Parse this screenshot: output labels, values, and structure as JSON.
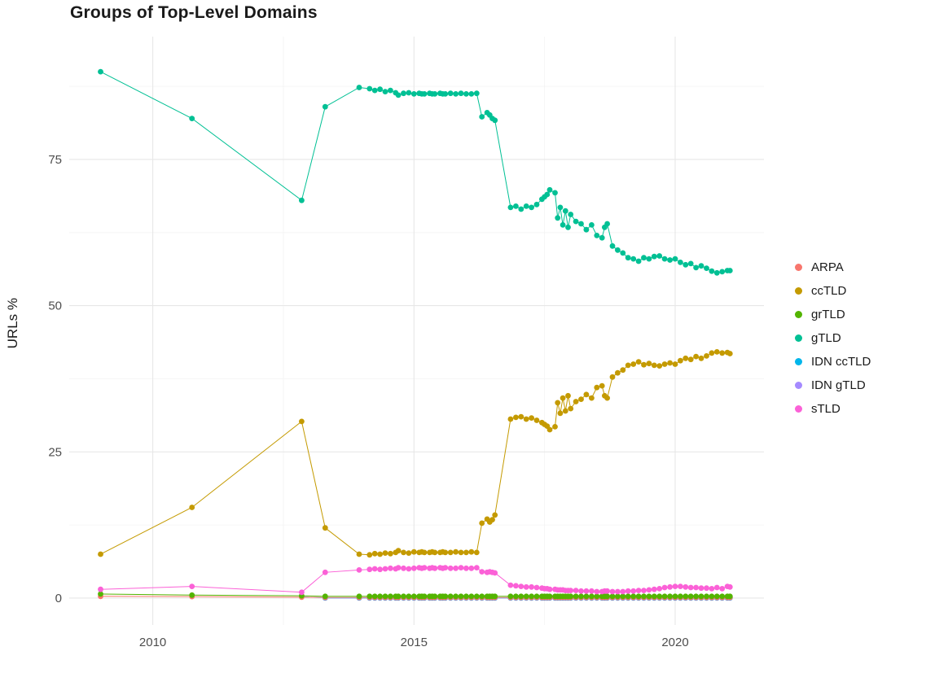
{
  "chart_data": {
    "type": "line",
    "title": "Groups of Top-Level Domains",
    "xlabel": "",
    "ylabel": "URLs %",
    "x_ticks": [
      2010,
      2015,
      2020
    ],
    "y_ticks": [
      0,
      25,
      50,
      75
    ],
    "x_minor": [
      2012.5,
      2017.5
    ],
    "y_minor": [
      12.5,
      37.5,
      62.5,
      87.5
    ],
    "xlim": [
      2008.4,
      2021.7
    ],
    "ylim": [
      -4.6,
      96
    ],
    "grid": true,
    "legend_position": "right",
    "draw_order": [
      5,
      4,
      0,
      2,
      1,
      3,
      6
    ],
    "x": [
      2009.0,
      2010.75,
      2012.85,
      2013.3,
      2013.95,
      2014.15,
      2014.25,
      2014.35,
      2014.45,
      2014.55,
      2014.65,
      2014.7,
      2014.8,
      2014.9,
      2015.0,
      2015.1,
      2015.15,
      2015.2,
      2015.3,
      2015.35,
      2015.4,
      2015.5,
      2015.55,
      2015.6,
      2015.7,
      2015.8,
      2015.9,
      2016.0,
      2016.1,
      2016.2,
      2016.3,
      2016.4,
      2016.45,
      2016.5,
      2016.55,
      2016.85,
      2016.95,
      2017.05,
      2017.15,
      2017.25,
      2017.35,
      2017.45,
      2017.5,
      2017.55,
      2017.6,
      2017.7,
      2017.75,
      2017.8,
      2017.85,
      2017.9,
      2017.95,
      2018.0,
      2018.1,
      2018.2,
      2018.3,
      2018.4,
      2018.5,
      2018.6,
      2018.65,
      2018.7,
      2018.8,
      2018.9,
      2019.0,
      2019.1,
      2019.2,
      2019.3,
      2019.4,
      2019.5,
      2019.6,
      2019.7,
      2019.8,
      2019.9,
      2020.0,
      2020.1,
      2020.2,
      2020.3,
      2020.4,
      2020.5,
      2020.6,
      2020.7,
      2020.8,
      2020.9,
      2021.0,
      2021.05
    ],
    "series": [
      {
        "name": "ARPA",
        "color": "#F8766D",
        "values": [
          0.3,
          0.25,
          0.15,
          0.1,
          0.1,
          0.1,
          0.1,
          0.1,
          0.1,
          0.1,
          0.1,
          0.1,
          0.1,
          0.1,
          0.1,
          0.1,
          0.1,
          0.1,
          0.1,
          0.1,
          0.1,
          0.1,
          0.1,
          0.1,
          0.1,
          0.1,
          0.1,
          0.1,
          0.1,
          0.1,
          0.1,
          0.1,
          0.1,
          0.1,
          0.1,
          0.1,
          0.1,
          0.1,
          0.1,
          0.1,
          0.1,
          0.1,
          0.1,
          0.1,
          0.1,
          0.1,
          0.1,
          0.1,
          0.1,
          0.1,
          0.1,
          0.1,
          0.1,
          0.1,
          0.1,
          0.1,
          0.1,
          0.1,
          0.1,
          0.1,
          0.1,
          0.1,
          0.1,
          0.1,
          0.1,
          0.1,
          0.1,
          0.1,
          0.1,
          0.1,
          0.1,
          0.1,
          0.1,
          0.1,
          0.1,
          0.1,
          0.1,
          0.1,
          0.1,
          0.1,
          0.1,
          0.1,
          0.1,
          0.1
        ]
      },
      {
        "name": "ccTLD",
        "color": "#C49A00",
        "values": [
          7.5,
          15.5,
          30.2,
          12.0,
          7.5,
          7.4,
          7.6,
          7.5,
          7.7,
          7.6,
          7.8,
          8.1,
          7.8,
          7.7,
          7.9,
          7.8,
          7.9,
          7.8,
          7.8,
          7.9,
          7.8,
          7.8,
          7.9,
          7.8,
          7.8,
          7.9,
          7.8,
          7.8,
          7.9,
          7.8,
          12.8,
          13.5,
          13.0,
          13.4,
          14.2,
          30.6,
          30.9,
          31.0,
          30.6,
          30.8,
          30.4,
          30.0,
          29.7,
          29.4,
          28.8,
          29.3,
          33.4,
          31.6,
          34.2,
          32.0,
          34.6,
          32.4,
          33.6,
          34.0,
          34.8,
          34.2,
          36.0,
          36.3,
          34.6,
          34.2,
          37.8,
          38.5,
          39.0,
          39.8,
          40.0,
          40.4,
          39.9,
          40.1,
          39.8,
          39.7,
          40.0,
          40.2,
          40.0,
          40.6,
          41.0,
          40.8,
          41.3,
          41.0,
          41.4,
          41.9,
          42.1,
          41.9,
          42.0,
          41.8
        ]
      },
      {
        "name": "grTLD",
        "color": "#53B400",
        "values": [
          0.7,
          0.5,
          0.4,
          0.3,
          0.3,
          0.3,
          0.3,
          0.3,
          0.3,
          0.3,
          0.3,
          0.3,
          0.3,
          0.3,
          0.3,
          0.3,
          0.3,
          0.3,
          0.3,
          0.3,
          0.3,
          0.3,
          0.3,
          0.3,
          0.3,
          0.3,
          0.3,
          0.3,
          0.3,
          0.3,
          0.3,
          0.3,
          0.3,
          0.3,
          0.3,
          0.3,
          0.3,
          0.3,
          0.3,
          0.3,
          0.3,
          0.3,
          0.3,
          0.3,
          0.3,
          0.3,
          0.3,
          0.3,
          0.3,
          0.3,
          0.3,
          0.3,
          0.3,
          0.3,
          0.3,
          0.3,
          0.3,
          0.3,
          0.3,
          0.3,
          0.3,
          0.3,
          0.3,
          0.3,
          0.3,
          0.3,
          0.3,
          0.3,
          0.3,
          0.3,
          0.3,
          0.3,
          0.3,
          0.3,
          0.3,
          0.3,
          0.3,
          0.3,
          0.3,
          0.3,
          0.3,
          0.3,
          0.3,
          0.3
        ]
      },
      {
        "name": "gTLD",
        "color": "#00C094",
        "values": [
          90,
          82,
          68,
          84,
          87.3,
          87.1,
          86.8,
          87.0,
          86.6,
          86.8,
          86.4,
          86.0,
          86.3,
          86.4,
          86.2,
          86.3,
          86.2,
          86.2,
          86.3,
          86.2,
          86.2,
          86.3,
          86.2,
          86.2,
          86.3,
          86.2,
          86.3,
          86.2,
          86.2,
          86.3,
          82.3,
          83.0,
          82.6,
          82.0,
          81.7,
          66.8,
          67.0,
          66.5,
          67.0,
          66.8,
          67.3,
          68.2,
          68.6,
          69.0,
          69.8,
          69.3,
          65.0,
          66.8,
          63.8,
          66.2,
          63.4,
          65.6,
          64.4,
          64.0,
          63.0,
          63.8,
          62.0,
          61.6,
          63.4,
          64.0,
          60.2,
          59.5,
          59.0,
          58.2,
          58.0,
          57.6,
          58.2,
          58.0,
          58.4,
          58.5,
          58.0,
          57.8,
          58.0,
          57.4,
          57.0,
          57.2,
          56.5,
          56.8,
          56.4,
          55.9,
          55.6,
          55.8,
          56.0,
          56.0
        ]
      },
      {
        "name": "IDN ccTLD",
        "color": "#00B6EB",
        "values": [
          null,
          null,
          0.2,
          0.05,
          0.05,
          0.05,
          0.05,
          0.05,
          0.05,
          0.05,
          0.05,
          0.05,
          0.05,
          0.05,
          0.05,
          0.05,
          0.05,
          0.05,
          0.05,
          0.05,
          0.05,
          0.05,
          0.05,
          0.05,
          0.05,
          0.05,
          0.05,
          0.05,
          0.05,
          0.05,
          0.05,
          0.05,
          0.05,
          0.05,
          0.05,
          0.05,
          0.05,
          0.05,
          0.05,
          0.05,
          0.05,
          0.05,
          0.05,
          0.05,
          0.05,
          0.05,
          0.05,
          0.05,
          0.05,
          0.05,
          0.05,
          0.05,
          0.05,
          0.05,
          0.05,
          0.05,
          0.05,
          0.05,
          0.05,
          0.05,
          0.05,
          0.05,
          0.05,
          0.05,
          0.05,
          0.05,
          0.05,
          0.05,
          0.05,
          0.05,
          0.05,
          0.05,
          0.05,
          0.05,
          0.05,
          0.05,
          0.05,
          0.05,
          0.05,
          0.05,
          0.05,
          0.05,
          0.05,
          0.05
        ]
      },
      {
        "name": "IDN gTLD",
        "color": "#A58AFF",
        "values": [
          null,
          null,
          null,
          0,
          0,
          0,
          0,
          0,
          0,
          0,
          0,
          0,
          0,
          0,
          0,
          0,
          0,
          0,
          0,
          0,
          0,
          0,
          0,
          0,
          0,
          0,
          0,
          0,
          0,
          0,
          0,
          0,
          0,
          0,
          0,
          0,
          0,
          0,
          0,
          0,
          0,
          0,
          0,
          0,
          0,
          0,
          0,
          0,
          0,
          0,
          0,
          0,
          0,
          0,
          0,
          0,
          0,
          0,
          0,
          0,
          0,
          0,
          0,
          0,
          0,
          0,
          0,
          0,
          0,
          0,
          0,
          0,
          0,
          0,
          0,
          0,
          0,
          0,
          0,
          0,
          0,
          0,
          0,
          0
        ]
      },
      {
        "name": "sTLD",
        "color": "#FB61D7",
        "values": [
          1.5,
          2.0,
          1.0,
          4.4,
          4.8,
          4.9,
          5.0,
          4.9,
          5.0,
          5.1,
          5.0,
          5.2,
          5.1,
          5.0,
          5.1,
          5.2,
          5.1,
          5.2,
          5.1,
          5.2,
          5.1,
          5.2,
          5.1,
          5.2,
          5.1,
          5.1,
          5.2,
          5.1,
          5.1,
          5.2,
          4.5,
          4.4,
          4.5,
          4.4,
          4.3,
          2.2,
          2.1,
          2.0,
          1.9,
          1.9,
          1.8,
          1.7,
          1.6,
          1.6,
          1.5,
          1.5,
          1.4,
          1.4,
          1.4,
          1.3,
          1.3,
          1.3,
          1.3,
          1.2,
          1.2,
          1.2,
          1.1,
          1.1,
          1.2,
          1.2,
          1.1,
          1.1,
          1.1,
          1.2,
          1.2,
          1.3,
          1.3,
          1.4,
          1.5,
          1.6,
          1.8,
          1.9,
          2.0,
          2.0,
          1.9,
          1.8,
          1.8,
          1.7,
          1.7,
          1.6,
          1.8,
          1.6,
          2.0,
          1.9
        ]
      }
    ]
  }
}
